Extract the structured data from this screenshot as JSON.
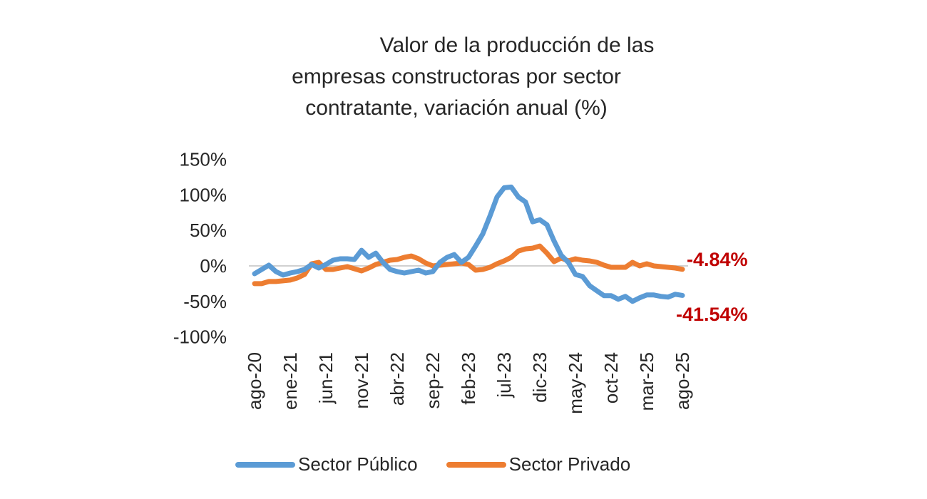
{
  "chart_data": {
    "type": "line",
    "title": [
      "Valor de la producción de las",
      "empresas constructoras por sector",
      "contratante, variación anual (%)"
    ],
    "xlabel": "",
    "ylabel": "",
    "ylim": [
      -100,
      150
    ],
    "yticks": [
      150,
      100,
      50,
      0,
      -50,
      -100
    ],
    "ytick_labels": [
      "150%",
      "100%",
      "50%",
      "0%",
      "-50%",
      "-100%"
    ],
    "grid": false,
    "zero_line": true,
    "legend_position": "bottom",
    "x": [
      "ago-20",
      "sep-20",
      "oct-20",
      "nov-20",
      "dic-20",
      "ene-21",
      "feb-21",
      "mar-21",
      "abr-21",
      "may-21",
      "jun-21",
      "jul-21",
      "ago-21",
      "sep-21",
      "oct-21",
      "nov-21",
      "dic-21",
      "ene-22",
      "feb-22",
      "mar-22",
      "abr-22",
      "may-22",
      "jun-22",
      "jul-22",
      "ago-22",
      "sep-22",
      "oct-22",
      "nov-22",
      "dic-22",
      "ene-23",
      "feb-23",
      "mar-23",
      "abr-23",
      "may-23",
      "jun-23",
      "jul-23",
      "ago-23",
      "sep-23",
      "oct-23",
      "nov-23",
      "dic-23",
      "ene-24",
      "feb-24",
      "mar-24",
      "abr-24",
      "may-24",
      "jun-24",
      "jul-24",
      "ago-24",
      "sep-24",
      "oct-24",
      "nov-24",
      "dic-24",
      "ene-25",
      "feb-25",
      "mar-25",
      "abr-25",
      "may-25",
      "jun-25",
      "jul-25",
      "ago-25"
    ],
    "xtick_labels": [
      "ago-20",
      "ene-21",
      "jun-21",
      "nov-21",
      "abr-22",
      "sep-22",
      "feb-23",
      "jul-23",
      "dic-23",
      "may-24",
      "oct-24",
      "mar-25",
      "ago-25"
    ],
    "series": [
      {
        "name": "Sector Público",
        "color": "#5B9BD5",
        "values": [
          -11,
          -5,
          1,
          -8,
          -13,
          -10,
          -8,
          -5,
          2,
          -3,
          2,
          8,
          10,
          10,
          9,
          22,
          12,
          18,
          5,
          -5,
          -8,
          -10,
          -8,
          -6,
          -10,
          -8,
          5,
          12,
          16,
          5,
          12,
          28,
          45,
          70,
          97,
          110,
          111,
          97,
          90,
          62,
          65,
          58,
          35,
          15,
          5,
          -12,
          -15,
          -28,
          -35,
          -42,
          -42,
          -47,
          -43,
          -50,
          -45,
          -41,
          -41,
          -43,
          -44,
          -40,
          -41.54
        ],
        "end_label": "-41.54%"
      },
      {
        "name": "Sector Privado",
        "color": "#ED7D31",
        "values": [
          -25,
          -25,
          -22,
          -22,
          -21,
          -20,
          -17,
          -12,
          3,
          5,
          -5,
          -5,
          -3,
          -1,
          -4,
          -7,
          -3,
          2,
          5,
          8,
          9,
          12,
          14,
          10,
          4,
          0,
          1,
          2,
          3,
          4,
          2,
          -6,
          -5,
          -2,
          3,
          7,
          12,
          21,
          24,
          25,
          28,
          18,
          6,
          11,
          7,
          10,
          8,
          7,
          5,
          1,
          -2,
          -2,
          -2,
          5,
          0,
          3,
          0,
          -1,
          -2,
          -3,
          -4.84
        ],
        "end_label": "-4.84%"
      }
    ],
    "annotation_color": "#C00000"
  }
}
